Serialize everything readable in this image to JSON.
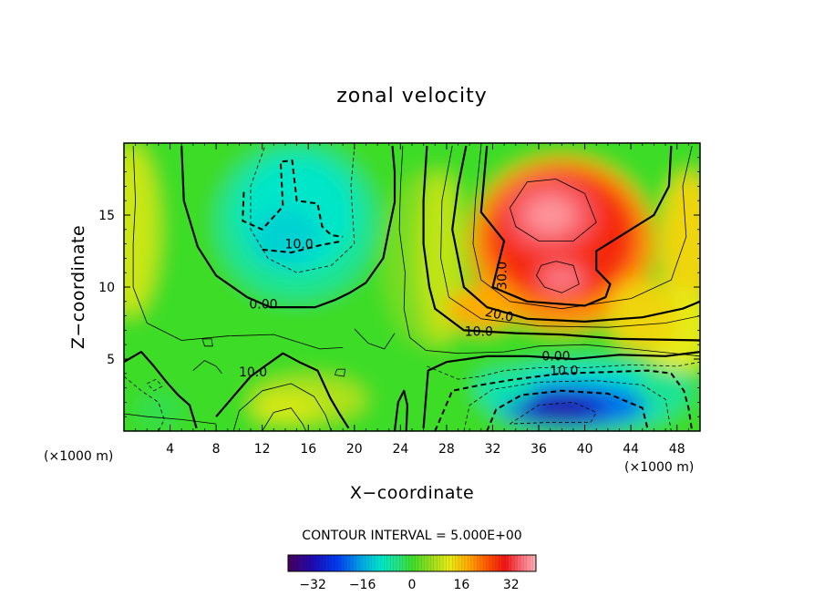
{
  "chart_data": {
    "type": "contour",
    "title": "zonal velocity",
    "xlabel": "X−coordinate",
    "ylabel": "Z−coordinate",
    "x_unit_note": "(×1000 m)",
    "z_unit_note": "(×1000 m)",
    "xlim": [
      0,
      50
    ],
    "ylim": [
      0,
      20
    ],
    "x_ticks": [
      4,
      8,
      12,
      16,
      20,
      24,
      28,
      32,
      36,
      40,
      44,
      48
    ],
    "y_ticks": [
      5,
      10,
      15
    ],
    "contour_interval_text": "CONTOUR INTERVAL = 5.000E+00",
    "contour_interval": 5,
    "contour_labels": [
      "10.0",
      "0.00",
      "10.0",
      "30.0",
      "20.0",
      "10.0",
      "0.00",
      "10.0"
    ],
    "colorbar": {
      "range": [
        -40,
        40
      ],
      "ticks": [
        -32,
        -16,
        0,
        16,
        32
      ],
      "tick_labels": [
        "−32",
        "−16",
        "0",
        "16",
        "32"
      ]
    },
    "features": [
      {
        "kind": "max",
        "x": 37,
        "z": 15,
        "value": 38
      },
      {
        "kind": "max",
        "x": 38,
        "z": 10.6,
        "value": 36
      },
      {
        "kind": "min",
        "x": 38,
        "z": 1.6,
        "value": -33
      },
      {
        "kind": "min",
        "x": 15,
        "z": 15,
        "value": -12
      }
    ]
  }
}
